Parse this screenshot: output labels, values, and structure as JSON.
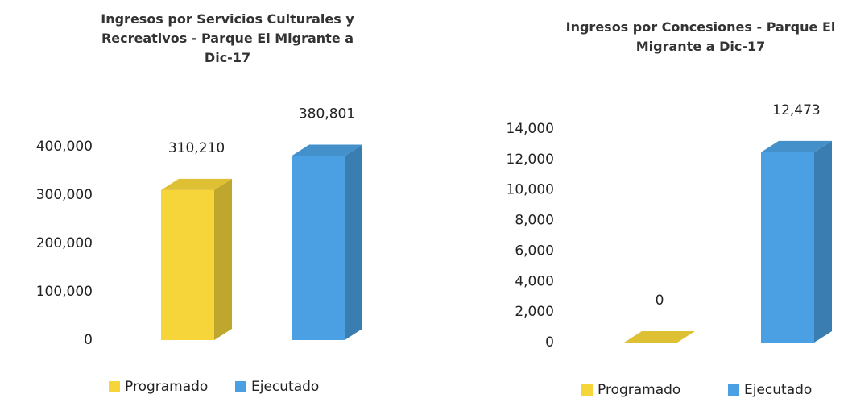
{
  "chart_data": [
    {
      "type": "bar3d",
      "title": "Ingresos por Servicios Culturales y Recreativos - Parque El Migrante a Dic-17",
      "categories": [
        null
      ],
      "series": [
        {
          "name": "Programado",
          "color": "#f5d53a",
          "values": [
            310210
          ],
          "value_labels": [
            "310,210"
          ]
        },
        {
          "name": "Ejecutado",
          "color": "#4aa0e2",
          "values": [
            380801
          ],
          "value_labels": [
            "380,801"
          ]
        }
      ],
      "ylim": [
        0,
        400000
      ],
      "yticks": [
        0,
        {
          "value": 100000,
          "label": "100,000"
        },
        {
          "value": 200000,
          "label": "200,000"
        },
        {
          "value": 300000,
          "label": "300,000"
        },
        {
          "value": 400000,
          "label": "400,000"
        }
      ],
      "grid": false,
      "legend": "bottom"
    },
    {
      "type": "bar3d",
      "title": "Ingresos por Concesiones - Parque El Migrante a Dic-17",
      "categories": [
        null
      ],
      "series": [
        {
          "name": "Programado",
          "color": "#f5d53a",
          "values": [
            0
          ]
        },
        {
          "name": "Ejecutado",
          "color": "#4aa0e2",
          "values": [
            12473
          ],
          "value_labels": [
            "12,473"
          ]
        }
      ],
      "ylim": [
        0,
        14000
      ],
      "yticks": [
        0,
        {
          "value": 2000,
          "label": "2,000"
        },
        {
          "value": 4000,
          "label": "4,000"
        },
        {
          "value": 6000,
          "label": "6,000"
        },
        {
          "value": 8000,
          "label": "8,000"
        },
        {
          "value": 10000,
          "label": "10,000"
        },
        {
          "value": 12000,
          "label": "12,000"
        },
        {
          "value": 14000,
          "label": "14,000"
        }
      ],
      "grid": false,
      "legend": "bottom"
    }
  ]
}
